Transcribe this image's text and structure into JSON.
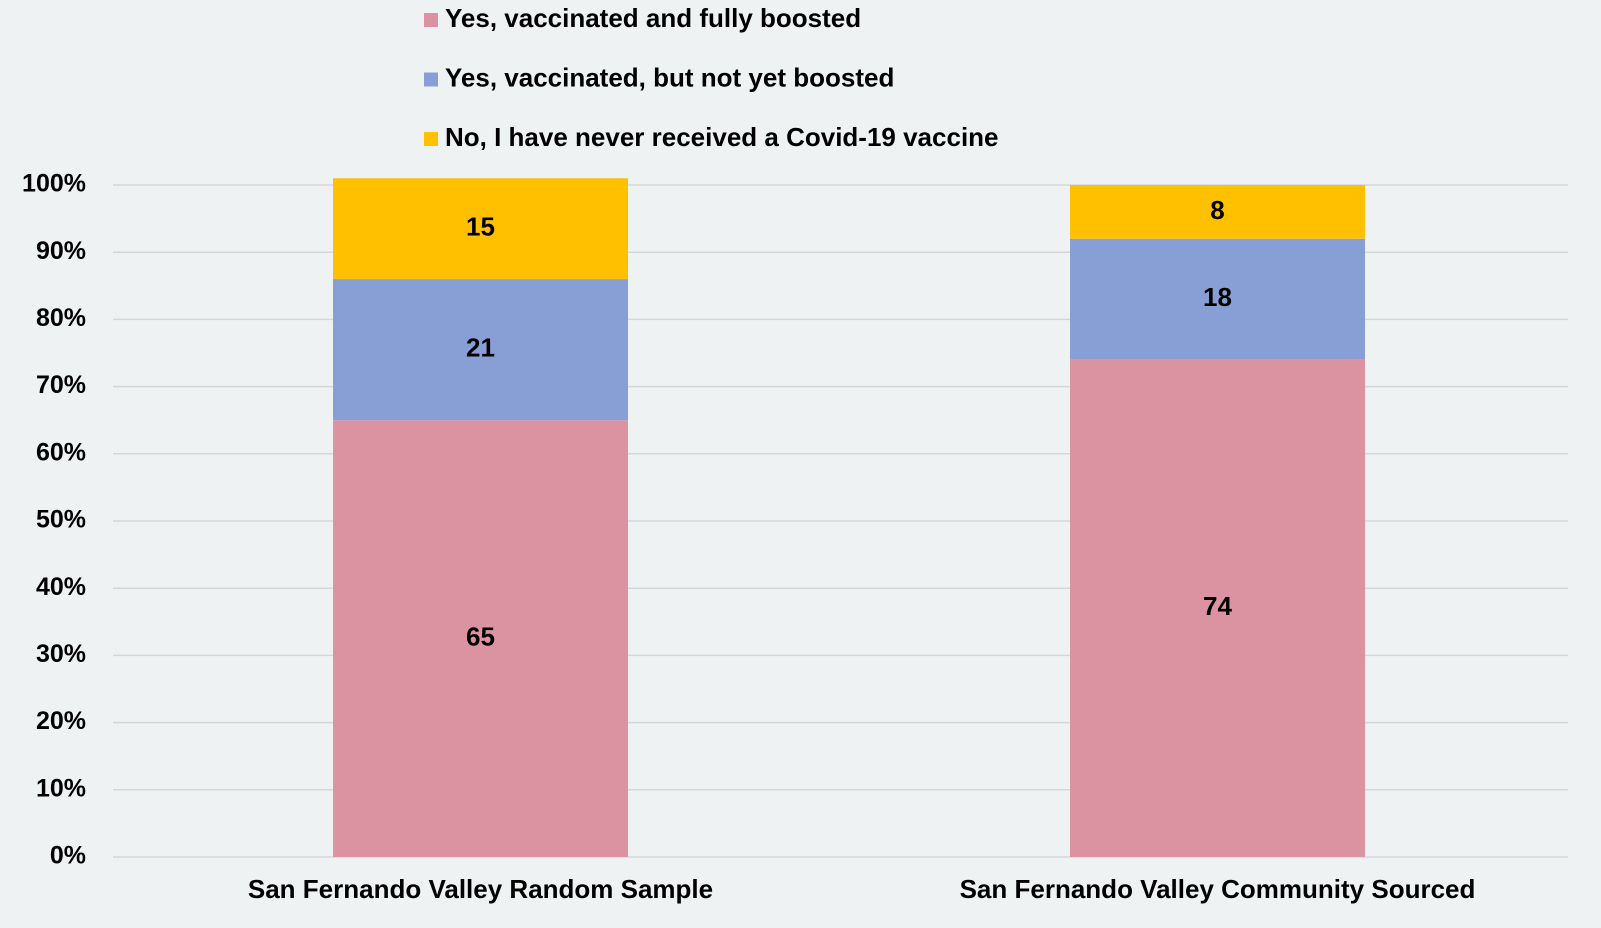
{
  "chart_data": {
    "type": "stacked_bar",
    "categories": [
      "San Fernando Valley Random Sample",
      "San Fernando Valley Community Sourced"
    ],
    "series": [
      {
        "name": "Yes, vaccinated and fully boosted",
        "color": "#db93a2",
        "values": [
          65,
          74
        ]
      },
      {
        "name": "Yes, vaccinated, but not yet boosted",
        "color": "#889fd6",
        "values": [
          21,
          18
        ]
      },
      {
        "name": "No, I have never received a Covid-19 vaccine",
        "color": "#ffc000",
        "values": [
          15,
          8
        ]
      }
    ],
    "ylim": [
      0,
      100
    ],
    "yticks": [
      {
        "value": 0,
        "label": "0%"
      },
      {
        "value": 10,
        "label": "10%"
      },
      {
        "value": 20,
        "label": "20%"
      },
      {
        "value": 30,
        "label": "30%"
      },
      {
        "value": 40,
        "label": "40%"
      },
      {
        "value": 50,
        "label": "50%"
      },
      {
        "value": 60,
        "label": "60%"
      },
      {
        "value": 70,
        "label": "70%"
      },
      {
        "value": 80,
        "label": "80%"
      },
      {
        "value": 90,
        "label": "90%"
      },
      {
        "value": 100,
        "label": "100%"
      }
    ],
    "grid": true,
    "legend": "top"
  }
}
